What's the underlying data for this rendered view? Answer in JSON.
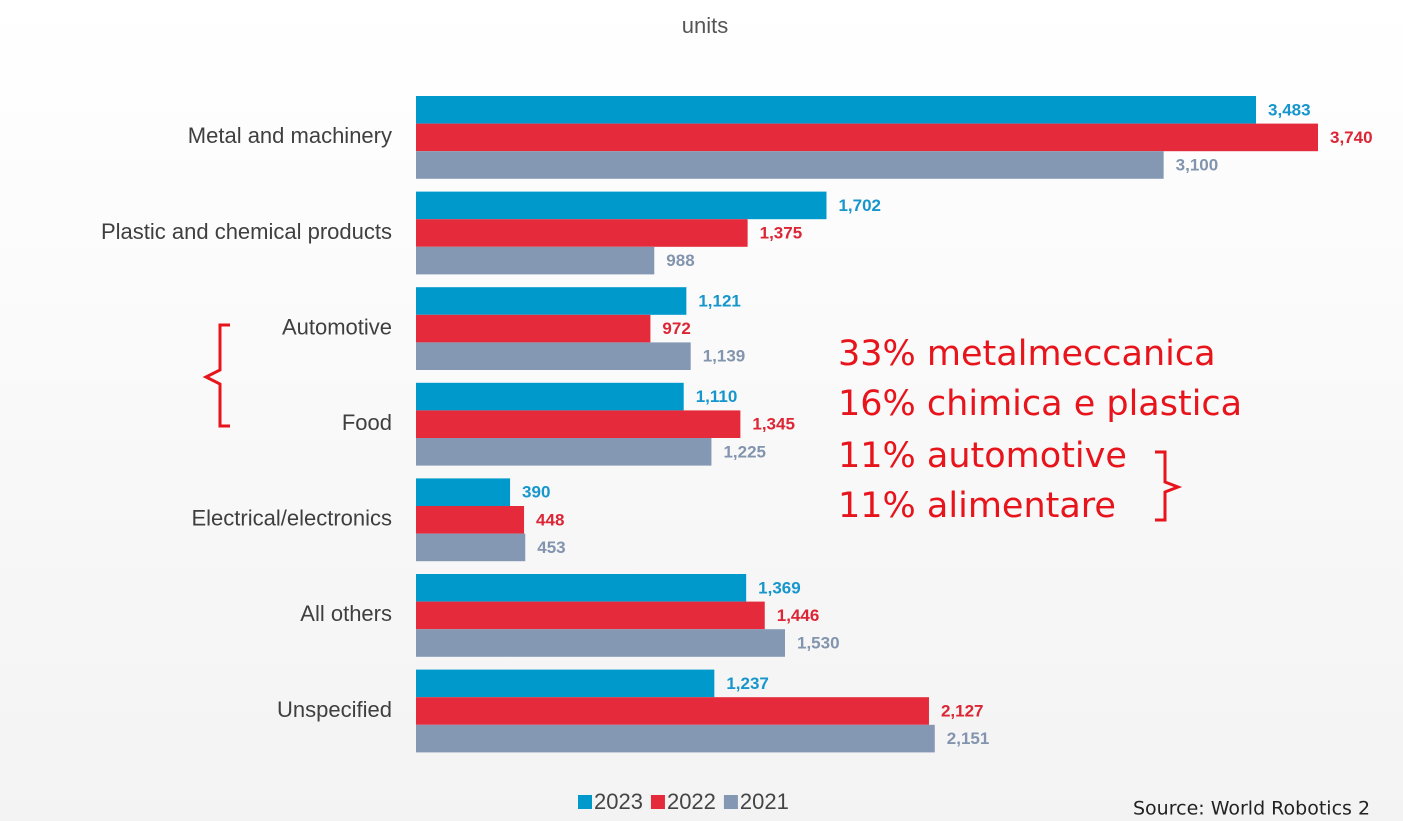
{
  "chart_data": {
    "type": "bar",
    "orientation": "horizontal",
    "title": "units",
    "categories": [
      "Metal and machinery",
      "Plastic and chemical products",
      "Automotive",
      "Food",
      "Electrical/electronics",
      "All others",
      "Unspecified"
    ],
    "series": [
      {
        "name": "2023",
        "color": "#0099cc",
        "label_color": "#1696cc",
        "values": [
          3483,
          1702,
          1121,
          1110,
          390,
          1369,
          1237
        ],
        "value_labels": [
          "3,483",
          "1,702",
          "1,121",
          "1,110",
          "390",
          "1,369",
          "1,237"
        ]
      },
      {
        "name": "2022",
        "color": "#e52b3b",
        "label_color": "#dc2535",
        "values": [
          3740,
          1375,
          972,
          1345,
          448,
          1446,
          2127
        ],
        "value_labels": [
          "3,740",
          "1,375",
          "972",
          "1,345",
          "448",
          "1,446",
          "2,127"
        ]
      },
      {
        "name": "2021",
        "color": "#8598b3",
        "label_color": "#8294ae",
        "values": [
          3100,
          988,
          1139,
          1225,
          453,
          1530,
          2151
        ],
        "value_labels": [
          "3,100",
          "988",
          "1,139",
          "1,225",
          "453",
          "1,530",
          "2,151"
        ]
      }
    ],
    "legend": "bottom",
    "annotations": [
      "33% metalmeccanica",
      "16% chimica e plastica",
      "11% automotive",
      "11% alimentare"
    ],
    "source": "Source: World Robotics 2"
  }
}
